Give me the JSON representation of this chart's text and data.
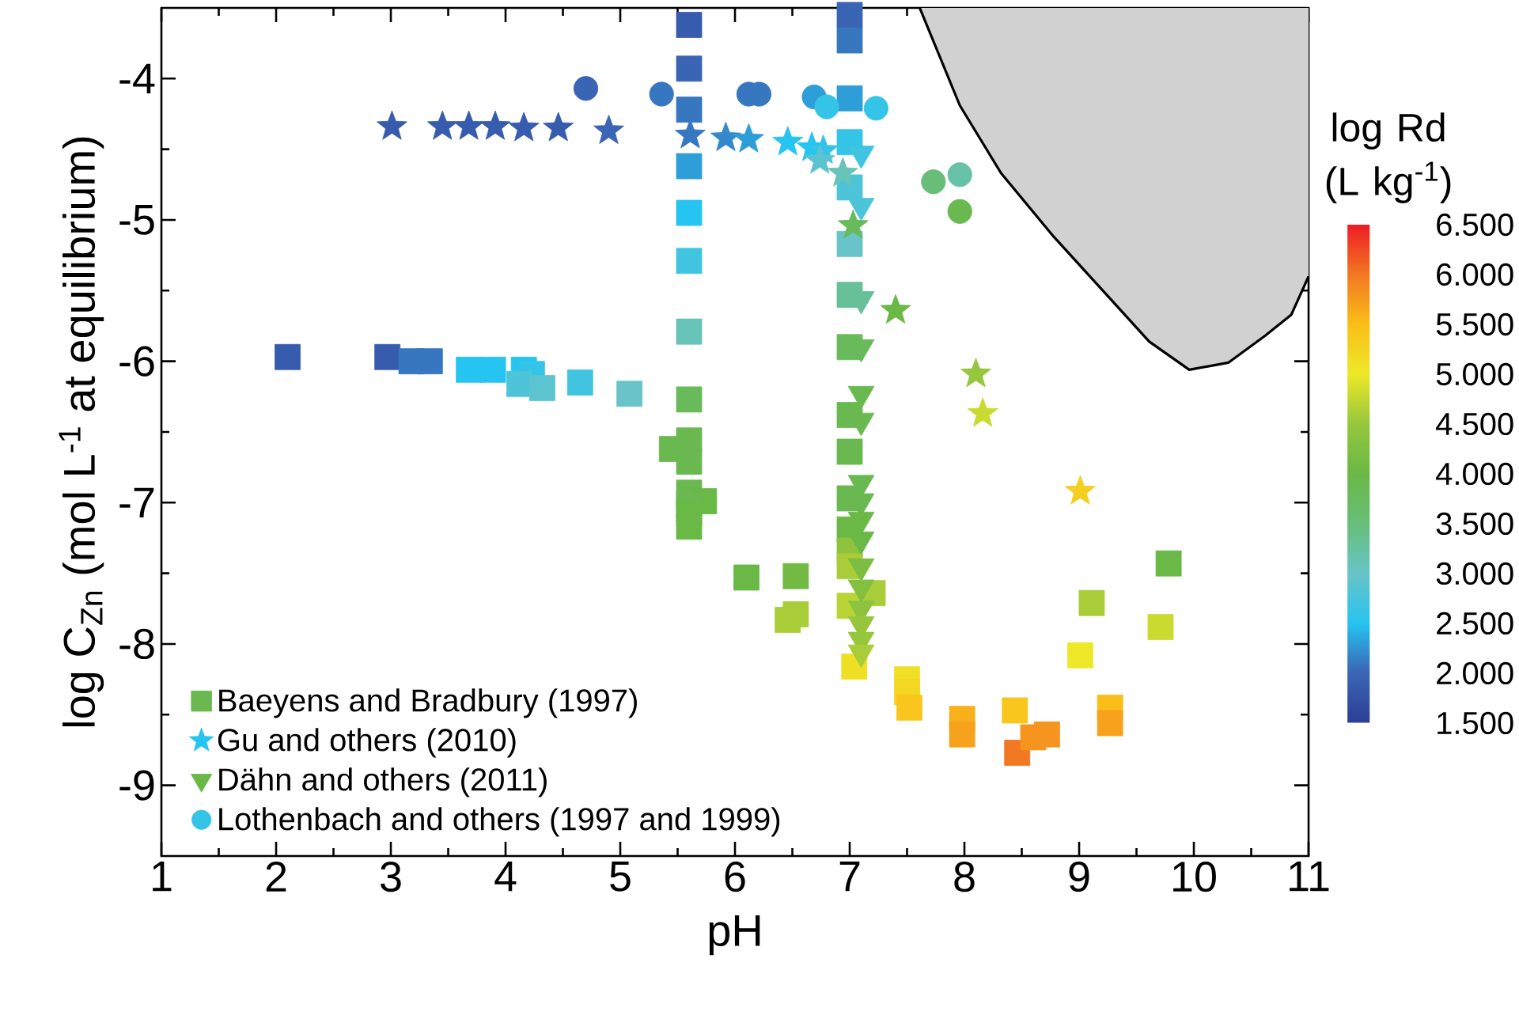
{
  "chart_data": {
    "type": "scatter",
    "xlabel": "pH",
    "ylabel": "log C$_{Zn}$ (mol L$^{-1}$ at equilibrium)",
    "clabel": "log Rd (L kg$^{-1}$)",
    "xlim": [
      1,
      11
    ],
    "ylim": [
      -9.5,
      -3.5
    ],
    "xticks": [
      1,
      2,
      3,
      4,
      5,
      6,
      7,
      8,
      9,
      10,
      11
    ],
    "yticks": [
      -9,
      -8,
      -7,
      -6,
      -5,
      -4
    ],
    "clim": [
      1.5,
      6.5
    ],
    "cticks": [
      {
        "value": 1.5,
        "label": "1.500"
      },
      {
        "value": 2.0,
        "label": "2.000"
      },
      {
        "value": 2.5,
        "label": "2.500"
      },
      {
        "value": 3.0,
        "label": "3.000"
      },
      {
        "value": 3.5,
        "label": "3.500"
      },
      {
        "value": 4.0,
        "label": "4.000"
      },
      {
        "value": 4.5,
        "label": "4.500"
      },
      {
        "value": 5.0,
        "label": "5.000"
      },
      {
        "value": 5.5,
        "label": "5.500"
      },
      {
        "value": 6.0,
        "label": "6.000"
      },
      {
        "value": 6.5,
        "label": "6.500"
      }
    ],
    "legend": "bottom left",
    "series": [
      {
        "name": "Baeyens and Bradbury (1997)",
        "marker": "square",
        "x": [
          2.1,
          2.97,
          3.18,
          3.34,
          3.68,
          3.89,
          4.16,
          4.23,
          4.12,
          4.32,
          4.65,
          5.08,
          5.6,
          5.6,
          5.6,
          5.6,
          5.6,
          5.6,
          5.6,
          5.6,
          5.6,
          5.45,
          5.6,
          5.6,
          5.73,
          5.6,
          5.6,
          5.6,
          6.1,
          6.53,
          6.53,
          6.46,
          7.0,
          7.0,
          7.0,
          7.0,
          7.0,
          7.0,
          7.0,
          7.0,
          7.0,
          7.0,
          7.0,
          7.0,
          7.0,
          7.0,
          7.2,
          7.0,
          7.04,
          7.5,
          7.5,
          7.52,
          7.98,
          7.98,
          8.44,
          8.46,
          8.6,
          8.72,
          9.27,
          9.27,
          9.01,
          9.11,
          9.78,
          9.71
        ],
        "values": [
          -5.97,
          -5.97,
          -6.0,
          -6.0,
          -6.06,
          -6.06,
          -6.06,
          -6.09,
          -6.16,
          -6.19,
          -6.15,
          -6.23,
          -3.62,
          -3.93,
          -4.22,
          -4.62,
          -4.95,
          -5.29,
          -5.79,
          -6.27,
          -6.56,
          -6.62,
          -6.71,
          -6.93,
          -6.99,
          -7.01,
          -7.08,
          -7.17,
          -7.53,
          -7.52,
          -7.79,
          -7.83,
          -3.55,
          -3.73,
          -4.14,
          -4.45,
          -4.77,
          -5.17,
          -5.53,
          -5.9,
          -6.38,
          -6.64,
          -6.97,
          -7.19,
          -7.34,
          -7.45,
          -7.64,
          -7.73,
          -8.16,
          -8.25,
          -8.34,
          -8.45,
          -8.53,
          -8.64,
          -8.47,
          -8.77,
          -8.66,
          -8.64,
          -8.45,
          -8.56,
          -8.08,
          -7.71,
          -7.43,
          -7.88
        ],
        "cvalues": [
          1.9,
          1.9,
          2.1,
          2.1,
          2.5,
          2.5,
          2.5,
          2.6,
          2.8,
          2.9,
          2.7,
          3.0,
          1.9,
          2.0,
          2.1,
          2.3,
          2.5,
          2.7,
          3.1,
          3.8,
          3.9,
          3.9,
          3.9,
          3.9,
          4.0,
          3.9,
          4.0,
          4.0,
          4.0,
          4.1,
          4.6,
          4.6,
          2.0,
          2.1,
          2.3,
          2.6,
          2.8,
          3.0,
          3.3,
          3.8,
          3.9,
          3.9,
          3.9,
          4.0,
          4.4,
          4.6,
          4.6,
          4.7,
          5.1,
          5.1,
          5.2,
          5.4,
          5.6,
          5.7,
          5.4,
          6.0,
          5.8,
          5.8,
          5.5,
          5.7,
          5.0,
          4.6,
          4.0,
          4.8
        ],
        "colors": [
          "#375cae",
          "#375cae",
          "#3677c0",
          "#3677c0",
          "#26c4f0",
          "#26c4f0",
          "#26c4f0",
          "#33c4e8",
          "#4ec4d8",
          "#5bc4d0",
          "#40c4e0",
          "#68c4c8",
          "#375cae",
          "#3a64b4",
          "#3677c0",
          "#2e9ed8",
          "#26c4f0",
          "#40c4e0",
          "#68c3b8",
          "#69ba5a",
          "#6ab950",
          "#6ab950",
          "#6ab950",
          "#6ab950",
          "#6ab846",
          "#6ab950",
          "#6ab846",
          "#6ab846",
          "#6ab846",
          "#73bb44",
          "#a8cd38",
          "#a8cd38",
          "#3a64b4",
          "#3677c0",
          "#2e9ed8",
          "#33c4e8",
          "#4ec4d8",
          "#68c4c8",
          "#68c098",
          "#69ba5a",
          "#6ab950",
          "#6ab950",
          "#6ab950",
          "#6ab846",
          "#8dc33e",
          "#a8cd38",
          "#a8cd38",
          "#b9d434",
          "#f0e025",
          "#f0e025",
          "#f3d722",
          "#f8c61c",
          "#f8b01b",
          "#f7a21d",
          "#f8c61c",
          "#f27823",
          "#f5941f",
          "#f5941f",
          "#fabe19",
          "#f7a21d",
          "#eee828",
          "#a8cd38",
          "#6ab846",
          "#cbda30"
        ]
      },
      {
        "name": "Gu and others (2010)",
        "marker": "star",
        "x": [
          3.01,
          3.45,
          3.68,
          3.91,
          4.16,
          4.46,
          4.9,
          5.61,
          5.92,
          6.12,
          6.46,
          6.67,
          6.77,
          6.74,
          6.94,
          7.03,
          7.4,
          8.1,
          8.16,
          9.01
        ],
        "values": [
          -4.34,
          -4.34,
          -4.34,
          -4.34,
          -4.35,
          -4.35,
          -4.37,
          -4.4,
          -4.42,
          -4.43,
          -4.45,
          -4.49,
          -4.51,
          -4.58,
          -4.67,
          -5.04,
          -5.64,
          -6.09,
          -6.37,
          -6.92
        ],
        "cvalues": [
          1.9,
          1.9,
          1.9,
          1.9,
          1.9,
          1.9,
          2.0,
          2.1,
          2.2,
          2.3,
          2.5,
          2.5,
          2.6,
          2.9,
          3.1,
          3.8,
          4.0,
          4.5,
          4.8,
          5.3
        ],
        "colors": [
          "#375cae",
          "#375cae",
          "#375cae",
          "#375cae",
          "#375cae",
          "#375cae",
          "#3a64b4",
          "#3677c0",
          "#328acc",
          "#2e9ed8",
          "#26c4f0",
          "#26c4f0",
          "#33c4e8",
          "#5bc4d0",
          "#68c3b8",
          "#69ba5a",
          "#6ab846",
          "#96c63c",
          "#cbda30",
          "#f5cf1f"
        ]
      },
      {
        "name": "Dähn and others (2011)",
        "marker": "triangle",
        "x": [
          7.1,
          7.1,
          7.1,
          7.1,
          7.1,
          7.1,
          7.1,
          7.1,
          7.1,
          7.1,
          7.1,
          7.1,
          7.1,
          7.1,
          7.1,
          7.1
        ],
        "values": [
          -4.53,
          -4.9,
          -5.56,
          -5.9,
          -6.23,
          -6.42,
          -6.86,
          -6.99,
          -7.12,
          -7.26,
          -7.45,
          -7.6,
          -7.75,
          -7.86,
          -7.97,
          -8.06
        ],
        "cvalues": [
          2.7,
          2.8,
          3.3,
          3.8,
          3.9,
          3.9,
          3.9,
          3.9,
          4.0,
          4.0,
          4.2,
          4.3,
          4.4,
          4.5,
          4.5,
          4.6
        ],
        "colors": [
          "#40c4e0",
          "#4ec4d8",
          "#68c098",
          "#69ba5a",
          "#6ab950",
          "#6ab950",
          "#6ab950",
          "#6ab950",
          "#6ab846",
          "#6ab846",
          "#7cbe42",
          "#84c040",
          "#8dc33e",
          "#96c63c",
          "#96c63c",
          "#a8cd38"
        ]
      },
      {
        "name": "Lothenbach and others (1997 and 1999)",
        "marker": "circle",
        "x": [
          4.7,
          5.36,
          6.12,
          6.21,
          6.69,
          6.8,
          7.23,
          7.73,
          7.96,
          7.96
        ],
        "values": [
          -4.07,
          -4.11,
          -4.11,
          -4.11,
          -4.13,
          -4.2,
          -4.21,
          -4.73,
          -4.68,
          -4.94
        ],
        "cvalues": [
          2.0,
          2.1,
          2.1,
          2.1,
          2.3,
          2.6,
          2.6,
          3.5,
          3.2,
          3.9
        ],
        "colors": [
          "#3a64b4",
          "#3677c0",
          "#3677c0",
          "#3677c0",
          "#2e9ed8",
          "#33c4e8",
          "#33c4e8",
          "#68be78",
          "#68c2a8",
          "#6ab950"
        ]
      },
      {
        "type": "line",
        "color": "#000000",
        "x": [
          7.61,
          7.96,
          8.32,
          8.78,
          9.24,
          9.61,
          9.96,
          10.3,
          10.62,
          10.85,
          11
        ],
        "values": [
          -3.5,
          -4.19,
          -4.67,
          -5.12,
          -5.53,
          -5.86,
          -6.06,
          -6.01,
          -5.82,
          -5.67,
          -5.4
        ],
        "lower": [
          -3.5,
          -4.19,
          -4.67,
          -5.12,
          -5.53,
          -5.86,
          -6.06,
          -6.01,
          -5.82,
          -5.67,
          -5.4
        ],
        "upper": [
          -3.5,
          -3.5,
          -3.5,
          -3.5,
          -3.5,
          -3.5,
          -3.5,
          -3.5,
          -3.5,
          -3.5,
          -3.5
        ]
      }
    ]
  }
}
